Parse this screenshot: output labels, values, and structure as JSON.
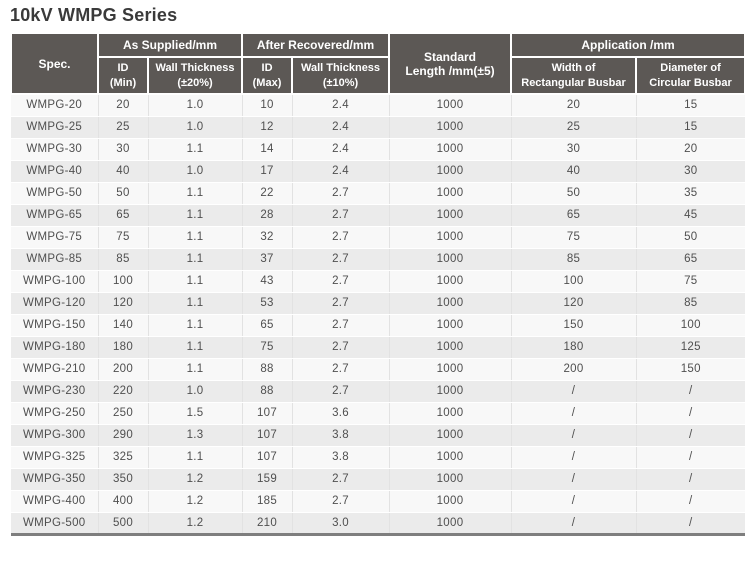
{
  "title": "10kV WMPG Series",
  "colors": {
    "header_bg": "#5c5855",
    "header_text": "#ffffff",
    "row_light": "#f8f8f8",
    "row_dark": "#ebebeb",
    "cell_text": "#4f4f4f",
    "title_text": "#3a3a3a",
    "bottom_border": "#7e7e7e",
    "cell_border": "#e2e2e2"
  },
  "table": {
    "header": {
      "spec": "Spec.",
      "as_supplied": "As Supplied/mm",
      "after_recovered": "After Recovered/mm",
      "standard_length": "Standard\nLength /mm(±5)",
      "application": "Application /mm",
      "id_min": "ID\n(Min)",
      "wall_thickness_20": "Wall Thickness\n(±20%)",
      "id_max": "ID\n(Max)",
      "wall_thickness_10": "Wall Thickness\n(±10%)",
      "width_rect": "Width of\nRectangular Busbar",
      "dia_circ": "Diameter of\nCircular Busbar"
    },
    "column_names": [
      "spec",
      "id-min",
      "wall-thickness-20",
      "id-max",
      "wall-thickness-10",
      "standard-length",
      "width-rectangular-busbar",
      "diameter-circular-busbar"
    ],
    "rows": [
      [
        "WMPG-20",
        "20",
        "1.0",
        "10",
        "2.4",
        "1000",
        "20",
        "15"
      ],
      [
        "WMPG-25",
        "25",
        "1.0",
        "12",
        "2.4",
        "1000",
        "25",
        "15"
      ],
      [
        "WMPG-30",
        "30",
        "1.1",
        "14",
        "2.4",
        "1000",
        "30",
        "20"
      ],
      [
        "WMPG-40",
        "40",
        "1.0",
        "17",
        "2.4",
        "1000",
        "40",
        "30"
      ],
      [
        "WMPG-50",
        "50",
        "1.1",
        "22",
        "2.7",
        "1000",
        "50",
        "35"
      ],
      [
        "WMPG-65",
        "65",
        "1.1",
        "28",
        "2.7",
        "1000",
        "65",
        "45"
      ],
      [
        "WMPG-75",
        "75",
        "1.1",
        "32",
        "2.7",
        "1000",
        "75",
        "50"
      ],
      [
        "WMPG-85",
        "85",
        "1.1",
        "37",
        "2.7",
        "1000",
        "85",
        "65"
      ],
      [
        "WMPG-100",
        "100",
        "1.1",
        "43",
        "2.7",
        "1000",
        "100",
        "75"
      ],
      [
        "WMPG-120",
        "120",
        "1.1",
        "53",
        "2.7",
        "1000",
        "120",
        "85"
      ],
      [
        "WMPG-150",
        "140",
        "1.1",
        "65",
        "2.7",
        "1000",
        "150",
        "100"
      ],
      [
        "WMPG-180",
        "180",
        "1.1",
        "75",
        "2.7",
        "1000",
        "180",
        "125"
      ],
      [
        "WMPG-210",
        "200",
        "1.1",
        "88",
        "2.7",
        "1000",
        "200",
        "150"
      ],
      [
        "WMPG-230",
        "220",
        "1.0",
        "88",
        "2.7",
        "1000",
        "/",
        "/"
      ],
      [
        "WMPG-250",
        "250",
        "1.5",
        "107",
        "3.6",
        "1000",
        "/",
        "/"
      ],
      [
        "WMPG-300",
        "290",
        "1.3",
        "107",
        "3.8",
        "1000",
        "/",
        "/"
      ],
      [
        "WMPG-325",
        "325",
        "1.1",
        "107",
        "3.8",
        "1000",
        "/",
        "/"
      ],
      [
        "WMPG-350",
        "350",
        "1.2",
        "159",
        "2.7",
        "1000",
        "/",
        "/"
      ],
      [
        "WMPG-400",
        "400",
        "1.2",
        "185",
        "2.7",
        "1000",
        "/",
        "/"
      ],
      [
        "WMPG-500",
        "500",
        "1.2",
        "210",
        "3.0",
        "1000",
        "/",
        "/"
      ]
    ]
  }
}
